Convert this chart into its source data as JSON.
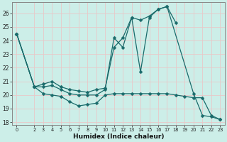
{
  "xlabel": "Humidex (Indice chaleur)",
  "bg_color": "#cceee8",
  "grid_color": "#bbdddd",
  "line_color": "#1a6b6b",
  "marker": "D",
  "markersize": 2.5,
  "linewidth": 0.9,
  "xlim": [
    -0.5,
    23.5
  ],
  "ylim": [
    17.8,
    26.8
  ],
  "yticks": [
    18,
    19,
    20,
    21,
    22,
    23,
    24,
    25,
    26
  ],
  "xticks": [
    0,
    2,
    3,
    4,
    5,
    6,
    7,
    8,
    9,
    10,
    11,
    12,
    13,
    14,
    15,
    16,
    17,
    18,
    19,
    20,
    21,
    22,
    23
  ],
  "lines": [
    {
      "x": [
        0,
        2,
        3,
        4,
        5,
        6,
        7,
        8,
        9,
        10,
        11,
        12,
        13,
        14,
        15,
        16,
        17,
        20,
        21,
        22,
        23
      ],
      "y": [
        24.5,
        20.6,
        20.6,
        20.7,
        20.4,
        20.1,
        20.0,
        20.0,
        20.0,
        20.4,
        24.2,
        23.5,
        25.7,
        21.7,
        25.7,
        26.3,
        26.5,
        20.1,
        18.5,
        18.4,
        18.2
      ]
    },
    {
      "x": [
        0,
        2,
        3,
        4,
        5,
        6,
        7,
        8,
        9,
        10,
        11,
        12,
        13,
        14,
        15,
        16,
        17,
        18
      ],
      "y": [
        24.5,
        20.6,
        20.8,
        21.0,
        20.6,
        20.4,
        20.3,
        20.2,
        20.4,
        20.5,
        23.5,
        24.2,
        25.7,
        25.5,
        25.8,
        26.3,
        26.5,
        25.3
      ]
    },
    {
      "x": [
        0,
        2,
        3,
        4,
        5,
        6,
        7,
        8,
        9,
        10,
        11,
        12,
        13,
        14,
        15,
        16,
        17,
        18,
        19,
        20,
        21,
        22,
        23
      ],
      "y": [
        24.5,
        20.6,
        20.1,
        20.0,
        19.9,
        19.5,
        19.2,
        19.3,
        19.4,
        20.0,
        20.1,
        20.1,
        20.1,
        20.1,
        20.1,
        20.1,
        20.1,
        20.0,
        19.9,
        19.8,
        19.8,
        18.5,
        18.2
      ]
    }
  ]
}
